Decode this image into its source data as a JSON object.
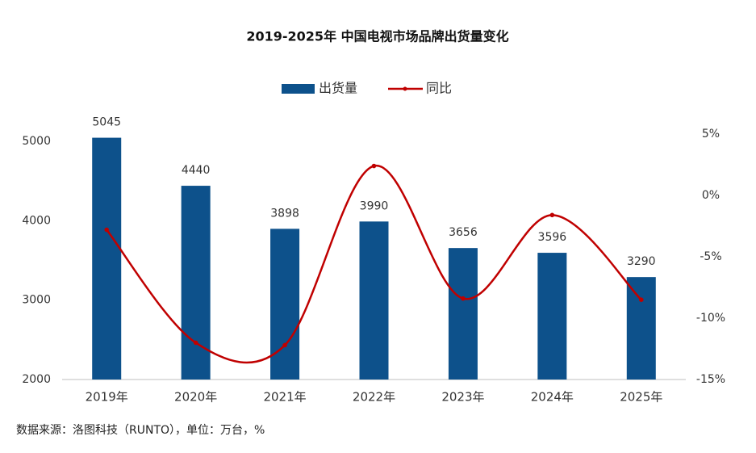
{
  "chart_data": {
    "type": "bar-line",
    "title": "2019-2025年 中国电视市场品牌出货量变化",
    "categories": [
      "2019年",
      "2020年",
      "2021年",
      "2022年",
      "2023年",
      "2024年",
      "2025年"
    ],
    "series": [
      {
        "name": "出货量",
        "type": "bar",
        "color": "#0d518b",
        "values": [
          5045,
          4440,
          3898,
          3990,
          3656,
          3596,
          3290
        ]
      },
      {
        "name": "同比",
        "type": "line",
        "axis": "y2",
        "color": "#c00000",
        "values": [
          -2.8,
          -12.0,
          -12.2,
          2.4,
          -8.4,
          -1.6,
          -8.5
        ]
      }
    ],
    "ylim": [
      2000,
      5000
    ],
    "yticks": [
      2000,
      3000,
      4000,
      5000
    ],
    "y2lim": [
      -15,
      5
    ],
    "y2ticks": [
      {
        "value": 5,
        "label": "5%"
      },
      {
        "value": 0,
        "label": "0%"
      },
      {
        "value": -5,
        "label": "-5%"
      },
      {
        "value": -10,
        "label": "-10%"
      },
      {
        "value": -15,
        "label": "-15%"
      }
    ],
    "source": "数据来源：洛图科技（RUNTO），单位：万台，%"
  }
}
